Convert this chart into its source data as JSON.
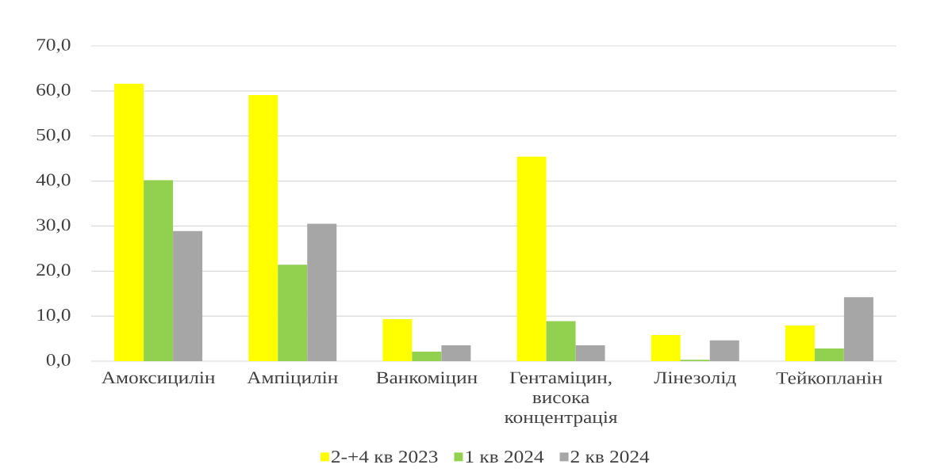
{
  "chart_data": {
    "type": "bar",
    "categories": [
      "Амоксицилін",
      "Ампіцилін",
      "Ванкоміцин",
      "Гентаміцин, висока концентрація",
      "Лінезолід",
      "Тейкопланін"
    ],
    "series": [
      {
        "name": "2-+4 кв 2023",
        "color": "#ffff00",
        "values": [
          61.6,
          59.1,
          9.3,
          45.4,
          5.8,
          7.9
        ]
      },
      {
        "name": "1 кв 2024",
        "color": "#92d050",
        "values": [
          40.2,
          21.4,
          2.1,
          8.9,
          0.3,
          2.8
        ]
      },
      {
        "name": "2 кв 2024",
        "color": "#a6a6a6",
        "values": [
          28.9,
          30.5,
          3.5,
          3.5,
          4.6,
          14.2
        ]
      }
    ],
    "ylim": [
      0,
      70
    ],
    "yticks": [
      {
        "value": 0,
        "label": "0,0"
      },
      {
        "value": 10,
        "label": "10,0"
      },
      {
        "value": 20,
        "label": "20,0"
      },
      {
        "value": 30,
        "label": "30,0"
      },
      {
        "value": 40,
        "label": "40,0"
      },
      {
        "value": 50,
        "label": "50,0"
      },
      {
        "value": 60,
        "label": "60,0"
      },
      {
        "value": 70,
        "label": "70,0"
      }
    ],
    "grid": "y",
    "legend": "bottom"
  }
}
